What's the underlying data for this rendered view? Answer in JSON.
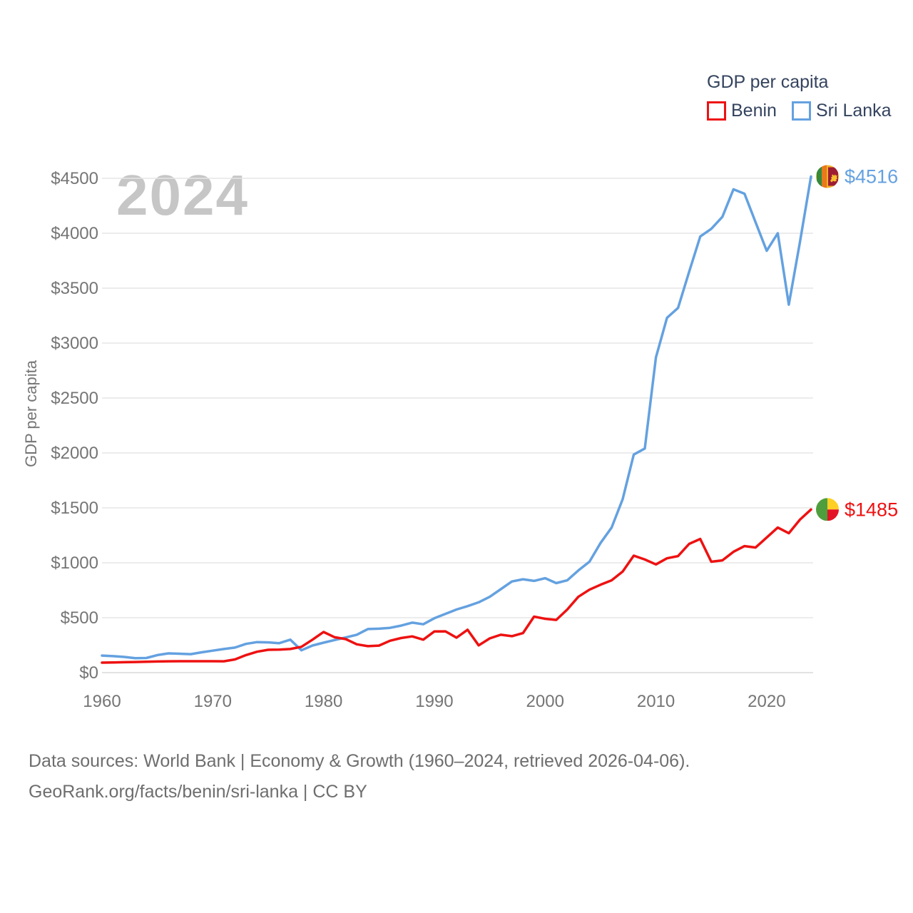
{
  "legend": {
    "title": "GDP per capita",
    "items": [
      {
        "label": "Benin",
        "color": "#ee1111"
      },
      {
        "label": "Sri Lanka",
        "color": "#64a1e0"
      }
    ]
  },
  "watermark": "2024",
  "y_axis_title": "GDP per capita",
  "footer": {
    "line1": "Data sources: World Bank | Economy & Growth (1960–2024, retrieved 2026-04-06).",
    "line2": "GeoRank.org/facts/benin/sri-lanka | CC BY"
  },
  "colors": {
    "benin_line": "#ee1111",
    "sri_lanka_line": "#64a1e0",
    "axis_text": "#757575",
    "legend_text": "#34435e",
    "watermark": "#c6c6c6",
    "gridline": "#e5e5e5",
    "background": "#ffffff"
  },
  "chart_data": {
    "type": "line",
    "title": "GDP per capita",
    "ylabel": "GDP per capita",
    "xlabel": "",
    "grid": "horizontal",
    "legend_position": "top-right",
    "ylim": [
      0,
      4500
    ],
    "yticks": [
      0,
      500,
      1000,
      1500,
      2000,
      2500,
      3000,
      3500,
      4000,
      4500
    ],
    "ytick_labels": [
      "$0",
      "$500",
      "$1000",
      "$1500",
      "$2000",
      "$2500",
      "$3000",
      "$3500",
      "$4000",
      "$4500"
    ],
    "xticks": [
      1960,
      1970,
      1980,
      1990,
      2000,
      2010,
      2020
    ],
    "x": [
      1960,
      1961,
      1962,
      1963,
      1964,
      1965,
      1966,
      1967,
      1968,
      1969,
      1970,
      1971,
      1972,
      1973,
      1974,
      1975,
      1976,
      1977,
      1978,
      1979,
      1980,
      1981,
      1982,
      1983,
      1984,
      1985,
      1986,
      1987,
      1988,
      1989,
      1990,
      1991,
      1992,
      1993,
      1994,
      1995,
      1996,
      1997,
      1998,
      1999,
      2000,
      2001,
      2002,
      2003,
      2004,
      2005,
      2006,
      2007,
      2008,
      2009,
      2010,
      2011,
      2012,
      2013,
      2014,
      2015,
      2016,
      2017,
      2018,
      2019,
      2020,
      2021,
      2022,
      2023,
      2024
    ],
    "series": [
      {
        "name": "Benin",
        "color": "#ee1111",
        "end_label": "$1485",
        "end_value": 1485,
        "values": [
          91,
          93,
          95,
          97,
          99,
          101,
          103,
          104,
          104,
          104,
          104,
          103,
          120,
          160,
          190,
          208,
          210,
          215,
          235,
          300,
          370,
          322,
          305,
          258,
          241,
          246,
          290,
          315,
          330,
          300,
          375,
          376,
          318,
          390,
          248,
          312,
          345,
          332,
          360,
          510,
          490,
          480,
          575,
          690,
          755,
          800,
          840,
          920,
          1065,
          1030,
          985,
          1041,
          1061,
          1172,
          1217,
          1010,
          1022,
          1100,
          1152,
          1139,
          1230,
          1321,
          1269,
          1393,
          1485
        ]
      },
      {
        "name": "Sri Lanka",
        "color": "#64a1e0",
        "end_label": "$4516",
        "end_value": 4516,
        "values": [
          155,
          150,
          143,
          131,
          133,
          160,
          175,
          172,
          168,
          185,
          200,
          215,
          228,
          262,
          278,
          275,
          268,
          300,
          203,
          247,
          273,
          297,
          320,
          345,
          397,
          400,
          408,
          428,
          455,
          440,
          495,
          535,
          575,
          605,
          640,
          690,
          760,
          830,
          850,
          835,
          860,
          815,
          840,
          930,
          1010,
          1180,
          1320,
          1580,
          1985,
          2040,
          2870,
          3230,
          3320,
          3650,
          3970,
          4040,
          4150,
          4400,
          4360,
          4100,
          3840,
          4000,
          3350,
          3920,
          4516
        ]
      }
    ]
  }
}
